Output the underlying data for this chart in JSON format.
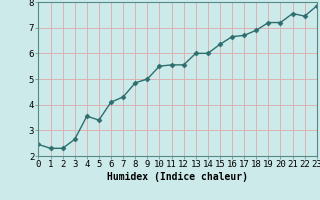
{
  "x": [
    0,
    1,
    2,
    3,
    4,
    5,
    6,
    7,
    8,
    9,
    10,
    11,
    12,
    13,
    14,
    15,
    16,
    17,
    18,
    19,
    20,
    21,
    22,
    23
  ],
  "y": [
    2.45,
    2.3,
    2.3,
    2.65,
    3.55,
    3.4,
    4.1,
    4.3,
    4.85,
    5.0,
    5.5,
    5.55,
    5.55,
    6.0,
    6.0,
    6.35,
    6.65,
    6.7,
    6.9,
    7.2,
    7.2,
    7.55,
    7.45,
    7.85
  ],
  "line_color": "#2d6e6e",
  "marker": "D",
  "markersize": 2.5,
  "linewidth": 1.0,
  "background_color": "#cceaea",
  "grid_color_h": "#ddaaaa",
  "grid_color_v": "#ddaaaa",
  "xlabel": "Humidex (Indice chaleur)",
  "xlabel_fontsize": 7,
  "ytick_labels": [
    "2",
    "3",
    "4",
    "5",
    "6",
    "7",
    "8"
  ],
  "ytick_vals": [
    2,
    3,
    4,
    5,
    6,
    7,
    8
  ],
  "xtick_labels": [
    "0",
    "1",
    "2",
    "3",
    "4",
    "5",
    "6",
    "7",
    "8",
    "9",
    "10",
    "11",
    "12",
    "13",
    "14",
    "15",
    "16",
    "17",
    "18",
    "19",
    "20",
    "21",
    "22",
    "23"
  ],
  "xtick_vals": [
    0,
    1,
    2,
    3,
    4,
    5,
    6,
    7,
    8,
    9,
    10,
    11,
    12,
    13,
    14,
    15,
    16,
    17,
    18,
    19,
    20,
    21,
    22,
    23
  ],
  "xlim": [
    0,
    23
  ],
  "ylim": [
    2.0,
    8.0
  ],
  "tick_fontsize": 6.5
}
